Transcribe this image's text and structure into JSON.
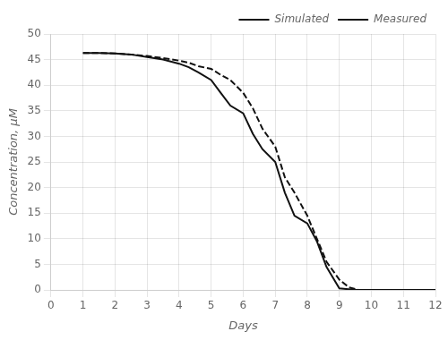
{
  "chart_data": {
    "type": "line",
    "xlabel": "Days",
    "ylabel": "Concentration, μM",
    "xlim": [
      0,
      12
    ],
    "ylim": [
      0,
      50
    ],
    "xticks": [
      0,
      1,
      2,
      3,
      4,
      5,
      6,
      7,
      8,
      9,
      10,
      11,
      12
    ],
    "yticks": [
      0,
      5,
      10,
      15,
      20,
      25,
      30,
      35,
      40,
      45,
      50
    ],
    "grid": true,
    "legend": "upper right",
    "series": [
      {
        "name": "Simulated",
        "color": "#111111",
        "line_style": "dashed",
        "x": [
          1.0,
          1.5,
          2.0,
          2.5,
          3.0,
          3.5,
          4.0,
          4.3,
          4.6,
          5.0,
          5.3,
          5.6,
          6.0,
          6.3,
          6.6,
          7.0,
          7.3,
          7.6,
          8.0,
          8.3,
          8.6,
          9.0,
          9.3,
          9.6,
          10.0,
          11.0,
          12.0
        ],
        "values": [
          46.3,
          46.3,
          46.2,
          46.0,
          45.7,
          45.3,
          44.8,
          44.4,
          43.7,
          43.2,
          42.0,
          41.0,
          38.5,
          35.5,
          31.5,
          28.0,
          22.0,
          19.0,
          14.5,
          10.0,
          5.5,
          2.0,
          0.5,
          0.0,
          0.0,
          0.0,
          0.0
        ]
      },
      {
        "name": "Measured",
        "color": "#111111",
        "line_style": "solid",
        "x": [
          1.0,
          1.5,
          2.0,
          2.5,
          3.0,
          3.5,
          4.0,
          4.3,
          4.6,
          5.0,
          5.3,
          5.6,
          6.0,
          6.3,
          6.6,
          7.0,
          7.3,
          7.6,
          8.0,
          8.3,
          8.6,
          9.0,
          9.5,
          10.0,
          11.0,
          12.0
        ],
        "values": [
          46.3,
          46.3,
          46.2,
          46.0,
          45.5,
          45.0,
          44.2,
          43.5,
          42.5,
          41.0,
          38.5,
          36.0,
          34.5,
          30.5,
          27.5,
          25.0,
          19.0,
          14.5,
          13.0,
          9.5,
          4.5,
          0.3,
          0.0,
          0.0,
          0.0,
          0.0
        ]
      }
    ]
  }
}
